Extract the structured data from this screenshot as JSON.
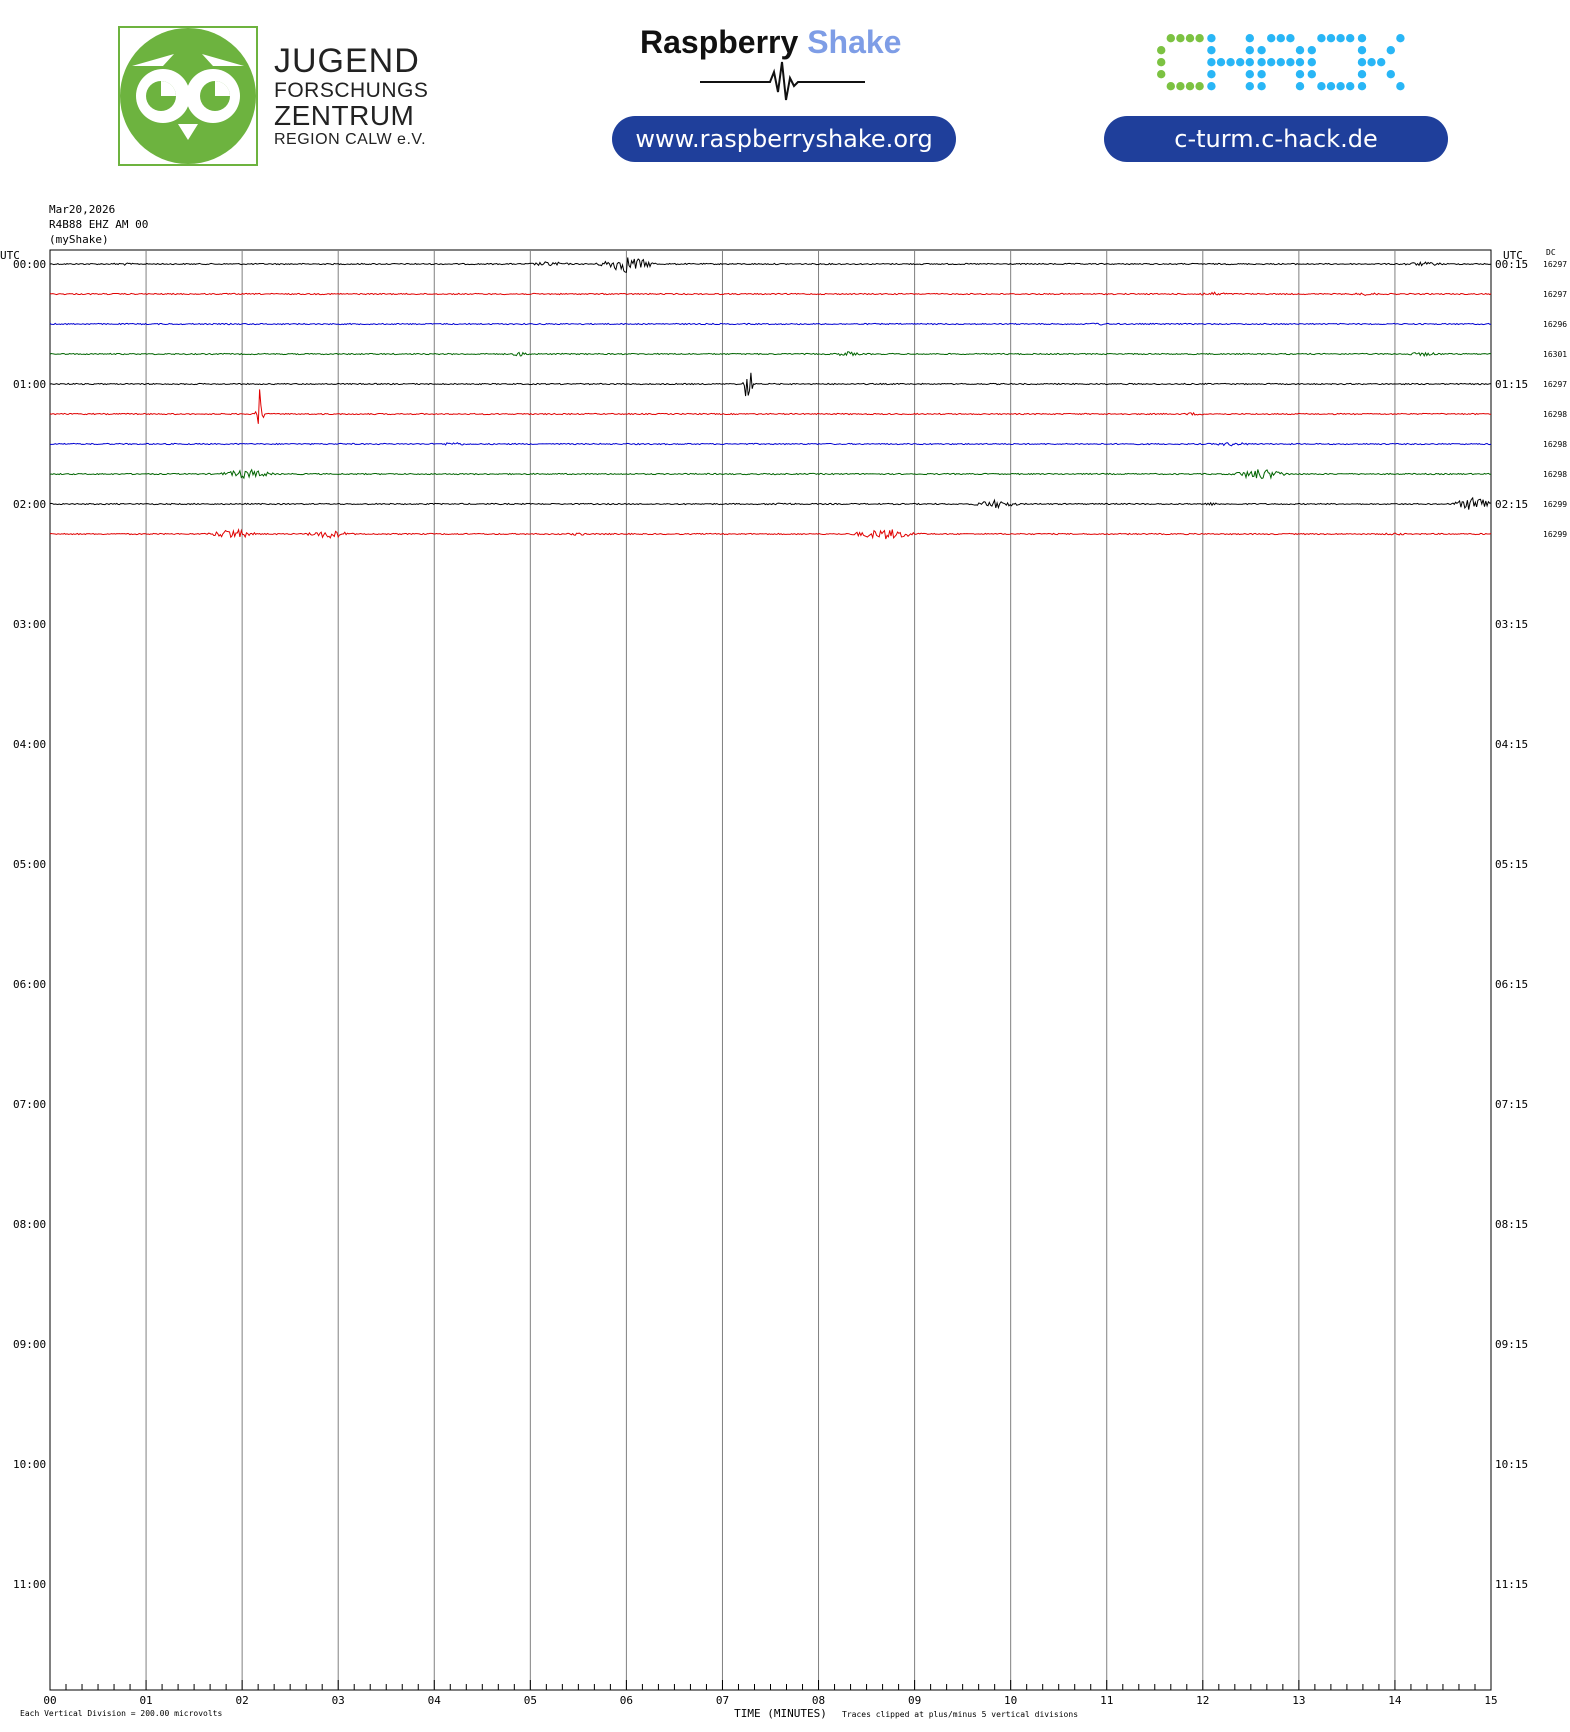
{
  "header": {
    "jfz_logo": {
      "line1": "JUGEND",
      "line2": "FORSCHUNGS",
      "line3": "ZENTRUM",
      "line4": "REGION CALW e.V.",
      "color": "#6db33f"
    },
    "raspberry_shake": {
      "word1": "Raspberry",
      "word2": "Shake",
      "url": "www.raspberryshake.org"
    },
    "chack": {
      "logo_text": "CHACK",
      "url": "c-turm.c-hack.de"
    }
  },
  "meta": {
    "date": "Mar20,2026",
    "station": "R4B88 EHZ AM 00",
    "source": "(myShake)"
  },
  "chart_data": {
    "type": "line",
    "title": "Mar20,2026 R4B88 EHZ AM 00 (myShake)",
    "xlabel": "TIME (MINUTES)",
    "x_ticks": [
      "00",
      "01",
      "02",
      "03",
      "04",
      "05",
      "06",
      "07",
      "08",
      "09",
      "10",
      "11",
      "12",
      "13",
      "14",
      "15"
    ],
    "xlim": [
      0,
      15
    ],
    "left_axis_label": "UTC",
    "right_axis_label": "UTC",
    "dc_label": "DC",
    "left_hour_labels": [
      "00:00",
      "01:00",
      "02:00",
      "03:00",
      "04:00",
      "05:00",
      "06:00",
      "07:00",
      "08:00",
      "09:00",
      "10:00",
      "11:00"
    ],
    "right_hour_labels": [
      "00:15",
      "01:15",
      "02:15",
      "03:15",
      "04:15",
      "05:15",
      "06:15",
      "07:15",
      "08:15",
      "09:15",
      "10:15",
      "11:15"
    ],
    "rows_per_hour": 4,
    "total_rows": 48,
    "trace_colors": [
      "#000000",
      "#e00000",
      "#0000d0",
      "#006400"
    ],
    "grid": "vertical lines at every minute",
    "traces": [
      {
        "row": 0,
        "color": "#000000",
        "dc": "16297",
        "events": [
          {
            "t": 6.0,
            "amp": 0.9,
            "dur": 0.35
          },
          {
            "t": 5.2,
            "amp": 0.25,
            "dur": 0.3
          },
          {
            "t": 14.3,
            "amp": 0.2,
            "dur": 0.4
          },
          {
            "t": 0.75,
            "amp": 0.15,
            "dur": 0.2
          }
        ]
      },
      {
        "row": 1,
        "color": "#e00000",
        "dc": "16297",
        "events": [
          {
            "t": 12.1,
            "amp": 0.2,
            "dur": 0.3
          },
          {
            "t": 13.7,
            "amp": 0.15,
            "dur": 0.3
          }
        ]
      },
      {
        "row": 2,
        "color": "#0000d0",
        "dc": "16296",
        "events": [
          {
            "t": 10.9,
            "amp": 0.15,
            "dur": 0.2
          }
        ]
      },
      {
        "row": 3,
        "color": "#006400",
        "dc": "16301",
        "events": [
          {
            "t": 4.9,
            "amp": 0.25,
            "dur": 0.15
          },
          {
            "t": 8.3,
            "amp": 0.25,
            "dur": 0.2
          },
          {
            "t": 14.3,
            "amp": 0.2,
            "dur": 0.3
          }
        ]
      },
      {
        "row": 4,
        "color": "#000000",
        "dc": "16297",
        "events": [
          {
            "t": 7.27,
            "amp": 2.6,
            "dur": 0.06
          }
        ]
      },
      {
        "row": 5,
        "color": "#e00000",
        "dc": "16298",
        "events": [
          {
            "t": 2.18,
            "amp": 3.0,
            "dur": 0.05
          },
          {
            "t": 11.9,
            "amp": 0.15,
            "dur": 0.2
          }
        ]
      },
      {
        "row": 6,
        "color": "#0000d0",
        "dc": "16298",
        "events": [
          {
            "t": 4.2,
            "amp": 0.2,
            "dur": 0.2
          },
          {
            "t": 12.3,
            "amp": 0.2,
            "dur": 0.3
          }
        ]
      },
      {
        "row": 7,
        "color": "#006400",
        "dc": "16298",
        "events": [
          {
            "t": 2.05,
            "amp": 0.5,
            "dur": 0.35
          },
          {
            "t": 12.6,
            "amp": 0.6,
            "dur": 0.35
          }
        ]
      },
      {
        "row": 8,
        "color": "#000000",
        "dc": "16299",
        "events": [
          {
            "t": 9.85,
            "amp": 0.45,
            "dur": 0.3
          },
          {
            "t": 14.85,
            "amp": 0.8,
            "dur": 0.3
          },
          {
            "t": 12.1,
            "amp": 0.15,
            "dur": 0.2
          },
          {
            "t": 7.6,
            "amp": 0.15,
            "dur": 0.3
          }
        ]
      },
      {
        "row": 9,
        "color": "#e00000",
        "dc": "16299",
        "events": [
          {
            "t": 1.9,
            "amp": 0.55,
            "dur": 0.3
          },
          {
            "t": 2.9,
            "amp": 0.45,
            "dur": 0.3
          },
          {
            "t": 8.7,
            "amp": 0.55,
            "dur": 0.45
          },
          {
            "t": 5.5,
            "amp": 0.15,
            "dur": 0.2
          },
          {
            "t": 14.0,
            "amp": 0.15,
            "dur": 0.2
          }
        ]
      }
    ],
    "footer_left": "Each Vertical Division =  200.00 microvolts",
    "footer_right": "Traces clipped at plus/minus 5 vertical divisions"
  }
}
